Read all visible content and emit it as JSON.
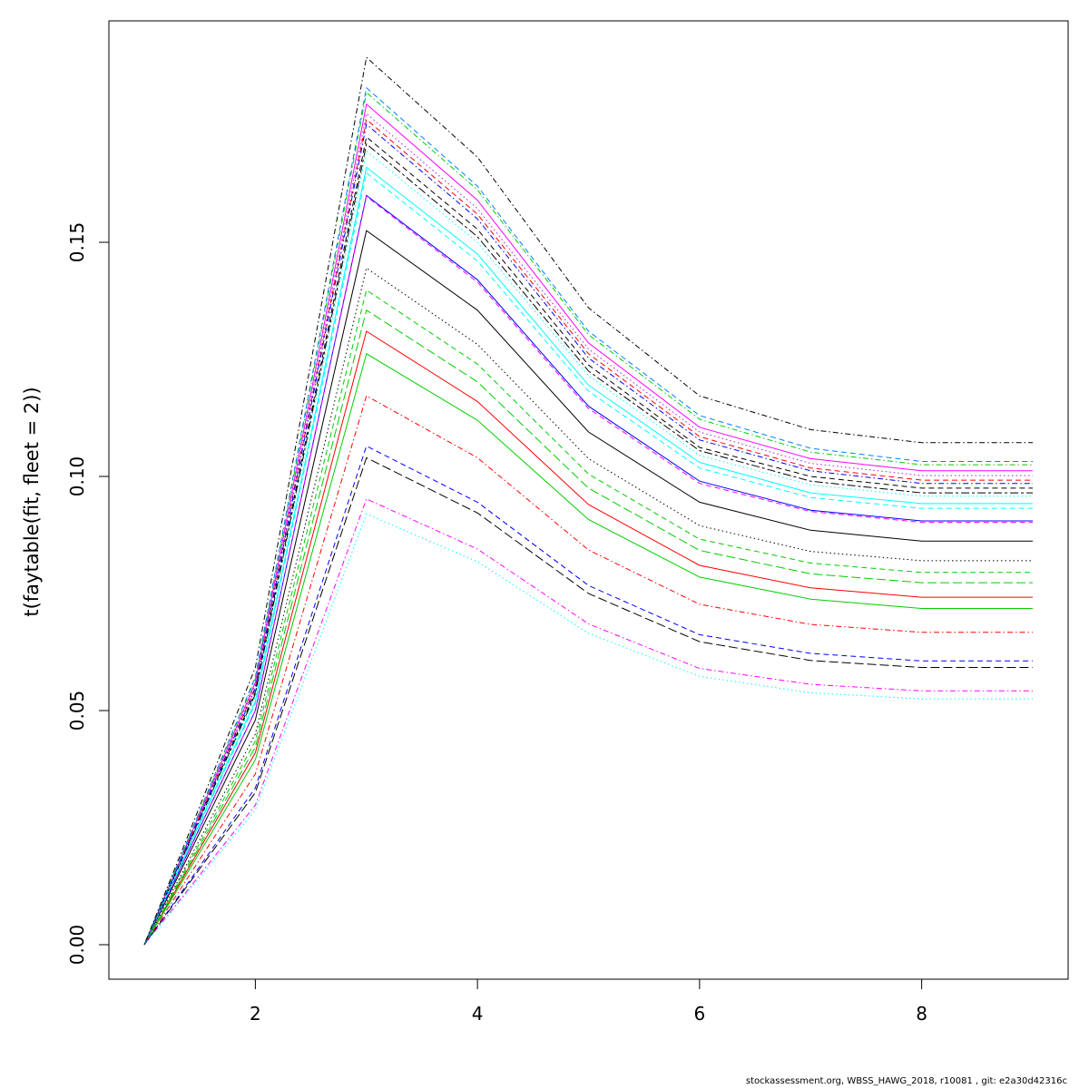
{
  "footer": "stockassessment.org, WBSS_HAWG_2018, r10081 , git: e2a30d42316c",
  "chart_data": {
    "type": "line",
    "ylabel": "t(faytable(fit, fleet = 2))",
    "xlabel": "",
    "title": "",
    "xlim": [
      1,
      9
    ],
    "ylim": [
      0,
      0.19
    ],
    "x": [
      1,
      2,
      3,
      4,
      5,
      6,
      7,
      8,
      9
    ],
    "x_ticks": [
      "2",
      "4",
      "6",
      "8"
    ],
    "y_ticks": [
      "0.00",
      "0.05",
      "0.10",
      "0.15"
    ],
    "grid": false,
    "legend": "none",
    "series": [
      {
        "color": "#000000",
        "dash": "solid",
        "values": [
          0,
          0.048,
          0.1525,
          0.1355,
          0.1095,
          0.0945,
          0.0885,
          0.0862,
          0.0862
        ]
      },
      {
        "color": "#ff0000",
        "dash": "solid",
        "values": [
          0,
          0.041,
          0.131,
          0.116,
          0.094,
          0.081,
          0.0762,
          0.0742,
          0.0742
        ]
      },
      {
        "color": "#00cd00",
        "dash": "solid",
        "values": [
          0,
          0.0395,
          0.1262,
          0.112,
          0.0908,
          0.0785,
          0.0738,
          0.0718,
          0.0718
        ]
      },
      {
        "color": "#0000ff",
        "dash": "solid",
        "values": [
          0,
          0.05,
          0.16,
          0.142,
          0.115,
          0.099,
          0.0928,
          0.0905,
          0.0905
        ]
      },
      {
        "color": "#00ffff",
        "dash": "solid",
        "values": [
          0,
          0.052,
          0.166,
          0.1475,
          0.1195,
          0.103,
          0.0965,
          0.0942,
          0.0942
        ]
      },
      {
        "color": "#ff00ff",
        "dash": "solid",
        "values": [
          0,
          0.056,
          0.1795,
          0.159,
          0.1285,
          0.1105,
          0.1038,
          0.1012,
          0.1012
        ]
      },
      {
        "color": "#000000",
        "dash": "dotted",
        "values": [
          0,
          0.045,
          0.1445,
          0.1282,
          0.1038,
          0.0895,
          0.084,
          0.082,
          0.082
        ]
      },
      {
        "color": "#00cd00",
        "dash": "dashed",
        "values": [
          0,
          0.0435,
          0.1398,
          0.124,
          0.1005,
          0.0866,
          0.0815,
          0.0795,
          0.0795
        ]
      },
      {
        "color": "#00cd00",
        "dash": "longdash",
        "values": [
          0,
          0.0422,
          0.1355,
          0.1202,
          0.0975,
          0.0842,
          0.0792,
          0.0773,
          0.0773
        ]
      },
      {
        "color": "#ff0000",
        "dash": "dotdash",
        "values": [
          0,
          0.0365,
          0.1172,
          0.104,
          0.0843,
          0.0727,
          0.0684,
          0.0667,
          0.0667
        ]
      },
      {
        "color": "#0000ff",
        "dash": "dashed",
        "values": [
          0,
          0.0335,
          0.1065,
          0.0945,
          0.0767,
          0.0662,
          0.0622,
          0.0606,
          0.0606
        ]
      },
      {
        "color": "#000000",
        "dash": "longdash",
        "values": [
          0,
          0.0325,
          0.104,
          0.0922,
          0.075,
          0.0647,
          0.0607,
          0.0592,
          0.0592
        ]
      },
      {
        "color": "#ff00ff",
        "dash": "dotdash",
        "values": [
          0,
          0.0298,
          0.0952,
          0.0845,
          0.0685,
          0.059,
          0.0556,
          0.0542,
          0.0542
        ]
      },
      {
        "color": "#00ffff",
        "dash": "dotted",
        "values": [
          0,
          0.0288,
          0.092,
          0.0818,
          0.0665,
          0.0573,
          0.0538,
          0.0525,
          0.0525
        ]
      },
      {
        "color": "#ff00ff",
        "dash": "dashed",
        "values": [
          0,
          0.05,
          0.1598,
          0.1415,
          0.1145,
          0.0985,
          0.0925,
          0.0902,
          0.0902
        ]
      },
      {
        "color": "#00ffff",
        "dash": "dashed",
        "values": [
          0,
          0.0515,
          0.1648,
          0.146,
          0.1182,
          0.1018,
          0.0955,
          0.0932,
          0.0932
        ]
      },
      {
        "color": "#ff0000",
        "dash": "dashed",
        "values": [
          0,
          0.055,
          0.1762,
          0.156,
          0.1262,
          0.1085,
          0.1018,
          0.0992,
          0.0992
        ]
      },
      {
        "color": "#000000",
        "dash": "dashed",
        "values": [
          0,
          0.054,
          0.1725,
          0.1528,
          0.1238,
          0.1062,
          0.1,
          0.0975,
          0.0975
        ]
      },
      {
        "color": "#000000",
        "dash": "twodash",
        "values": [
          0,
          0.0535,
          0.171,
          0.1512,
          0.1225,
          0.1055,
          0.099,
          0.0965,
          0.0965
        ]
      },
      {
        "color": "#0000ff",
        "dash": "dotdash",
        "values": [
          0,
          0.0547,
          0.1752,
          0.155,
          0.1253,
          0.1078,
          0.1012,
          0.0985,
          0.0985
        ]
      },
      {
        "color": "#00ffff",
        "dash": "dotted",
        "values": [
          0,
          0.053,
          0.1695,
          0.15,
          0.1215,
          0.1045,
          0.0982,
          0.0958,
          0.0958
        ]
      },
      {
        "color": "#a020f0",
        "dash": "dotted",
        "values": [
          0,
          0.0555,
          0.1775,
          0.1572,
          0.1272,
          0.1095,
          0.1028,
          0.1002,
          0.1002
        ]
      },
      {
        "color": "#00cd00",
        "dash": "dotdash",
        "values": [
          0,
          0.0568,
          0.182,
          0.1612,
          0.1303,
          0.1122,
          0.1052,
          0.1025,
          0.1025
        ]
      },
      {
        "color": "#0080ff",
        "dash": "dashed",
        "values": [
          0,
          0.0572,
          0.183,
          0.162,
          0.131,
          0.113,
          0.106,
          0.1032,
          0.1032
        ]
      },
      {
        "color": "#000000",
        "dash": "dotdash",
        "values": [
          0,
          0.0592,
          0.1895,
          0.1682,
          0.136,
          0.1172,
          0.11,
          0.1072,
          0.1072
        ]
      }
    ]
  }
}
